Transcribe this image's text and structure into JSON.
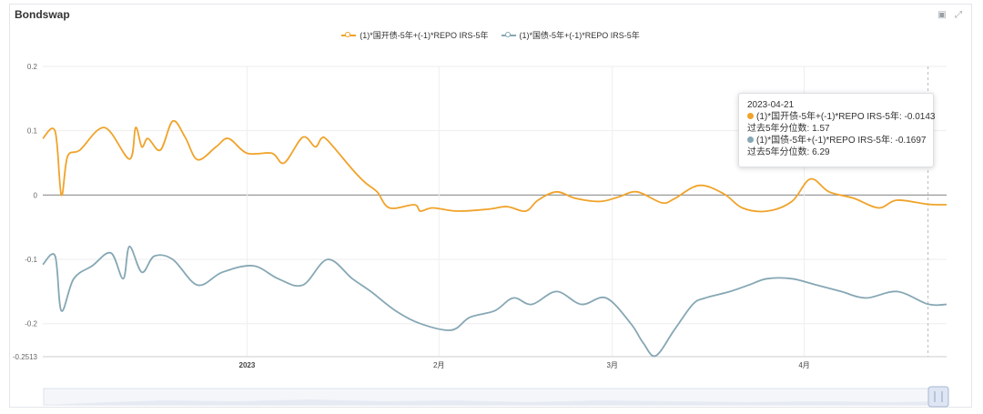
{
  "panel": {
    "title": "Bondswap"
  },
  "toolbar": {
    "image_icon": "image-icon",
    "expand_icon": "expand-icon"
  },
  "colors": {
    "series1": "#f0a32a",
    "series2": "#86a7b4",
    "zero_line": "#999999",
    "grid": "#eeeeee",
    "axis": "#cccccc"
  },
  "chart_data": {
    "type": "line",
    "title": "",
    "xlabel": "",
    "ylabel": "",
    "x_tick_labels": [
      "2023",
      "2月",
      "3月",
      "4月"
    ],
    "x_tick_dates": [
      "2023-01-01",
      "2023-02-01",
      "2023-03-01",
      "2023-04-01"
    ],
    "x_range": [
      "2022-11-29",
      "2023-04-24"
    ],
    "y_tick_labels": [
      "0.2",
      "0.1",
      "0",
      "-0.1",
      "-0.2",
      "-0.2513"
    ],
    "y_ticks": [
      0.2,
      0.1,
      0,
      -0.1,
      -0.2
    ],
    "ylim": [
      -0.2513,
      0.2
    ],
    "grid": true,
    "legend": "top-center",
    "series": [
      {
        "name": "(1)*国开债-5年+(-1)*REPO IRS-5年",
        "x": [
          "2022-11-29",
          "2022-12-01",
          "2022-12-02",
          "2022-12-03",
          "2022-12-05",
          "2022-12-09",
          "2022-12-13",
          "2022-12-14",
          "2022-12-15",
          "2022-12-16",
          "2022-12-18",
          "2022-12-20",
          "2022-12-22",
          "2022-12-24",
          "2022-12-27",
          "2022-12-29",
          "2023-01-01",
          "2023-01-05",
          "2023-01-07",
          "2023-01-10",
          "2023-01-12",
          "2023-01-13",
          "2023-01-14",
          "2023-01-18",
          "2023-01-20",
          "2023-01-22",
          "2023-01-24",
          "2023-01-28",
          "2023-01-29",
          "2023-01-31",
          "2023-02-04",
          "2023-02-09",
          "2023-02-12",
          "2023-02-15",
          "2023-02-17",
          "2023-02-20",
          "2023-02-23",
          "2023-02-27",
          "2023-03-02",
          "2023-03-05",
          "2023-03-09",
          "2023-03-11",
          "2023-03-15",
          "2023-03-19",
          "2023-03-22",
          "2023-03-26",
          "2023-03-30",
          "2023-04-02",
          "2023-04-05",
          "2023-04-09",
          "2023-04-13",
          "2023-04-16",
          "2023-04-21",
          "2023-04-24"
        ],
        "values": [
          0.088,
          0.099,
          0.0,
          0.06,
          0.07,
          0.105,
          0.056,
          0.105,
          0.075,
          0.088,
          0.07,
          0.115,
          0.09,
          0.055,
          0.075,
          0.088,
          0.065,
          0.065,
          0.05,
          0.09,
          0.075,
          0.088,
          0.085,
          0.04,
          0.02,
          0.005,
          -0.02,
          -0.015,
          -0.025,
          -0.02,
          -0.025,
          -0.022,
          -0.018,
          -0.025,
          -0.008,
          0.005,
          -0.005,
          -0.01,
          -0.003,
          0.005,
          -0.012,
          -0.006,
          0.015,
          0.002,
          -0.02,
          -0.025,
          -0.01,
          0.025,
          0.005,
          -0.005,
          -0.02,
          -0.008,
          -0.0143,
          -0.015
        ]
      },
      {
        "name": "(1)*国债-5年+(-1)*REPO IRS-5年",
        "x": [
          "2022-11-29",
          "2022-12-01",
          "2022-12-02",
          "2022-12-04",
          "2022-12-07",
          "2022-12-10",
          "2022-12-12",
          "2022-12-13",
          "2022-12-15",
          "2022-12-17",
          "2022-12-20",
          "2022-12-24",
          "2022-12-28",
          "2023-01-02",
          "2023-01-06",
          "2023-01-10",
          "2023-01-14",
          "2023-01-18",
          "2023-01-21",
          "2023-01-25",
          "2023-01-29",
          "2023-02-03",
          "2023-02-06",
          "2023-02-10",
          "2023-02-13",
          "2023-02-16",
          "2023-02-20",
          "2023-02-24",
          "2023-02-28",
          "2023-03-04",
          "2023-03-06",
          "2023-03-08",
          "2023-03-11",
          "2023-03-14",
          "2023-03-16",
          "2023-03-20",
          "2023-03-23",
          "2023-03-26",
          "2023-03-30",
          "2023-04-03",
          "2023-04-07",
          "2023-04-11",
          "2023-04-16",
          "2023-04-21",
          "2023-04-24"
        ],
        "values": [
          -0.108,
          -0.095,
          -0.18,
          -0.13,
          -0.11,
          -0.09,
          -0.13,
          -0.08,
          -0.12,
          -0.095,
          -0.1,
          -0.14,
          -0.12,
          -0.11,
          -0.13,
          -0.14,
          -0.1,
          -0.13,
          -0.15,
          -0.18,
          -0.2,
          -0.21,
          -0.19,
          -0.18,
          -0.16,
          -0.17,
          -0.15,
          -0.17,
          -0.16,
          -0.2,
          -0.23,
          -0.25,
          -0.21,
          -0.17,
          -0.16,
          -0.15,
          -0.14,
          -0.13,
          -0.13,
          -0.14,
          -0.15,
          -0.16,
          -0.15,
          -0.1697,
          -0.17
        ]
      }
    ]
  },
  "tooltip": {
    "date": "2023-04-21",
    "rows": [
      {
        "label": "(1)*国开债-5年+(-1)*REPO IRS-5年: -0.0143",
        "percentile": "过去5年分位数: 1.57"
      },
      {
        "label": "(1)*国债-5年+(-1)*REPO IRS-5年: -0.1697",
        "percentile": "过去5年分位数: 6.29"
      }
    ]
  }
}
